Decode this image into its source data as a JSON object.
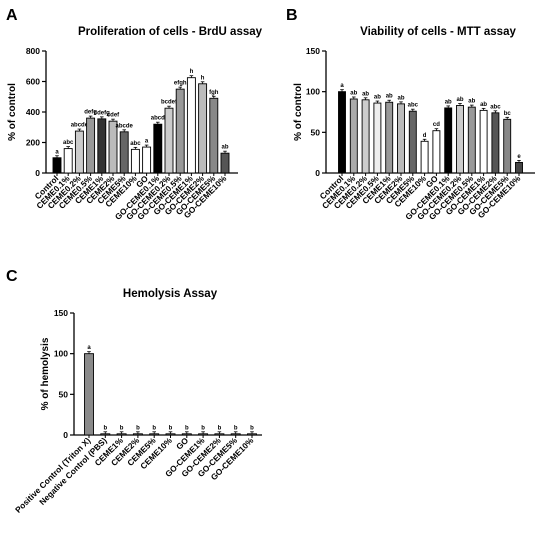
{
  "chart_data": [
    {
      "type": "bar",
      "panel_label": "A",
      "title": "Proliferation of cells - BrdU assay",
      "ylabel": "% of control",
      "ylim": [
        0,
        800
      ],
      "yticks": [
        0,
        200,
        400,
        600,
        800
      ],
      "grid": false,
      "categories": [
        "Control",
        "CEME0.1%",
        "CEME0.2%",
        "CEME0.5%",
        "CEME1%",
        "CEME2%",
        "CEME5%",
        "CEME10%",
        "GO",
        "GO-CEME0.1%",
        "GO-CEME0.2%",
        "GO-CEME0.5%",
        "GO-CEME1%",
        "GO-CEME2%",
        "GO-CEME5%",
        "GO-CEME10%"
      ],
      "values": [
        100,
        160,
        275,
        360,
        355,
        340,
        270,
        155,
        170,
        320,
        425,
        550,
        625,
        585,
        490,
        130
      ],
      "significance": [
        "a",
        "abc",
        "abcde",
        "defg",
        "cdefg",
        "cdef",
        "abcde",
        "abc",
        "a",
        "abcd",
        "bcdef",
        "efgh",
        "h",
        "h",
        "fgh",
        "ab"
      ],
      "colors": [
        "#000000",
        "#ffffff",
        "#cccccc",
        "#999999",
        "#333333",
        "#bbbbbb",
        "#666666",
        "#ffffff",
        "#ffffff",
        "#000000",
        "#cccccc",
        "#999999",
        "#ffffff",
        "#bbbbbb",
        "#888888",
        "#555555"
      ]
    },
    {
      "type": "bar",
      "panel_label": "B",
      "title": "Viability of cells -  MTT assay",
      "ylabel": "% of control",
      "ylim": [
        0,
        150
      ],
      "yticks": [
        0,
        50,
        100,
        150
      ],
      "grid": false,
      "categories": [
        "Control",
        "CEME0.1%",
        "CEME0.2%",
        "CEME0.5%",
        "CEME1%",
        "CEME2%",
        "CEME5%",
        "CEME10%",
        "GO",
        "GO-CEME0.1%",
        "GO-CEME0.2%",
        "GO-CEME0.5%",
        "GO-CEME1%",
        "GO-CEME2%",
        "GO-CEME5%",
        "GO-CEME10%"
      ],
      "values": [
        100,
        91,
        90,
        86,
        87,
        85,
        76,
        39,
        52,
        80,
        83,
        81,
        77,
        74,
        66,
        13
      ],
      "significance": [
        "a",
        "ab",
        "ab",
        "ab",
        "ab",
        "ab",
        "abc",
        "d",
        "cd",
        "ab",
        "ab",
        "ab",
        "ab",
        "abc",
        "bc",
        "e"
      ],
      "colors": [
        "#000000",
        "#aaaaaa",
        "#cccccc",
        "#eeeeee",
        "#999999",
        "#bbbbbb",
        "#666666",
        "#ffffff",
        "#ffffff",
        "#000000",
        "#cccccc",
        "#999999",
        "#ffffff",
        "#555555",
        "#888888",
        "#444444"
      ]
    },
    {
      "type": "bar",
      "panel_label": "C",
      "title": "Hemolysis  Assay",
      "ylabel": "% of hemolysis",
      "ylim": [
        0,
        150
      ],
      "yticks": [
        0,
        50,
        100,
        150
      ],
      "grid": false,
      "categories": [
        "Positive Control (Triton X)",
        "Negative Control (PBS)",
        "CEME1%",
        "CEME2%",
        "CEME5%",
        "CEME10%",
        "GO",
        "GO-CEME1%",
        "GO-CEME2%",
        "GO-CEME5%",
        "GO-CEME10%"
      ],
      "values": [
        100,
        1,
        1,
        1,
        1,
        1,
        1,
        1,
        1,
        1,
        1
      ],
      "significance": [
        "a",
        "b",
        "b",
        "b",
        "b",
        "b",
        "b",
        "b",
        "b",
        "b",
        "b"
      ],
      "colors": [
        "#8a8a8a",
        "#8a8a8a",
        "#8a8a8a",
        "#8a8a8a",
        "#8a8a8a",
        "#8a8a8a",
        "#8a8a8a",
        "#8a8a8a",
        "#8a8a8a",
        "#8a8a8a",
        "#8a8a8a"
      ]
    }
  ]
}
